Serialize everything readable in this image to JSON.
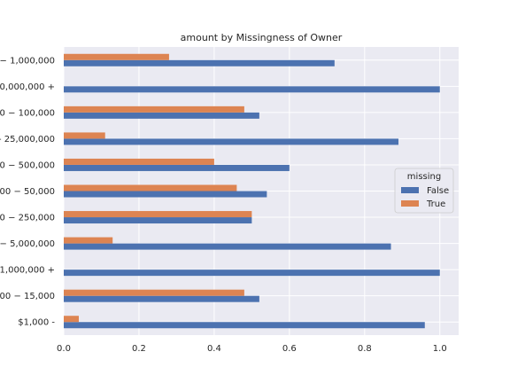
{
  "chart_data": {
    "type": "bar",
    "orientation": "horizontal",
    "title": "amount by Missingness of Owner",
    "xlabel": "",
    "ylabel": "",
    "xlim": [
      0,
      1.05
    ],
    "x_ticks": [
      "0.0",
      "0.2",
      "0.4",
      "0.6",
      "0.8",
      "1.0"
    ],
    "grid": true,
    "categories": [
      "− 1,000,000",
      "50,000,000 +",
      "0 − 100,000",
      "- 25,000,000",
      "0 − 500,000",
      "00 − 50,000",
      "0 − 250,000",
      "− 5,000,000",
      "$1,000,000 +",
      "00 − 15,000",
      "$1,000 -"
    ],
    "series": [
      {
        "name": "False",
        "color": "#4c72b0",
        "values": [
          0.72,
          1.0,
          0.52,
          0.89,
          0.6,
          0.54,
          0.5,
          0.87,
          1.0,
          0.52,
          0.96
        ]
      },
      {
        "name": "True",
        "color": "#dd8452",
        "values": [
          0.28,
          0.0,
          0.48,
          0.11,
          0.4,
          0.46,
          0.5,
          0.13,
          0.0,
          0.48,
          0.04
        ]
      }
    ],
    "legend": {
      "title": "missing",
      "placement": "center-right"
    }
  }
}
